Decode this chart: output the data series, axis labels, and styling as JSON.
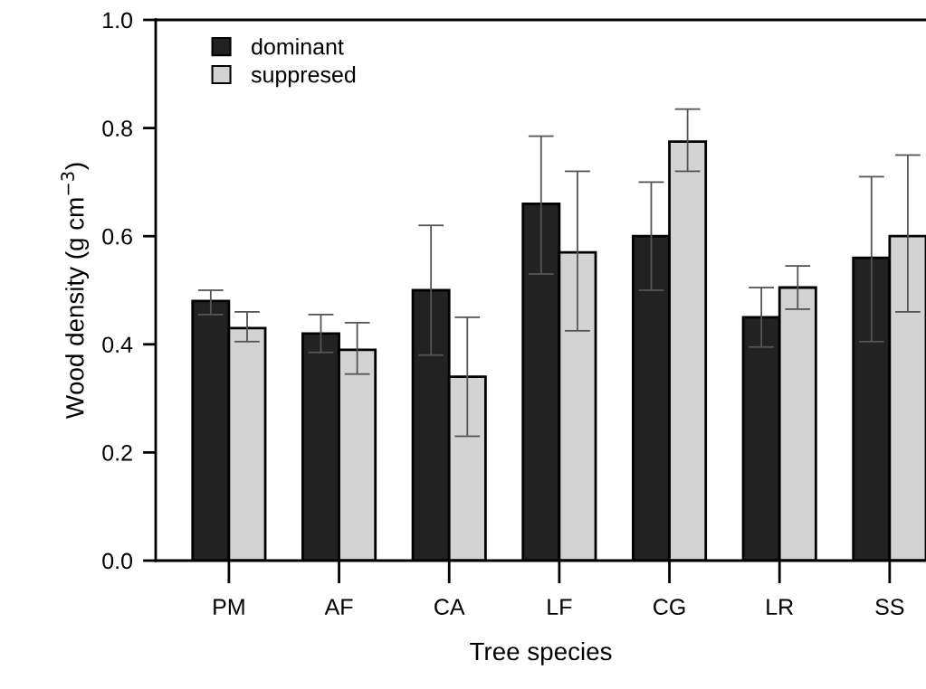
{
  "chart_data": {
    "type": "bar",
    "xlabel": "Tree species",
    "ylabel": "Wood density (g cm$^{−3}$)",
    "categories": [
      "PM",
      "AF",
      "CA",
      "LF",
      "CG",
      "LR",
      "SS"
    ],
    "series": [
      {
        "name": "dominant",
        "color": "#222222",
        "values": [
          0.48,
          0.42,
          0.5,
          0.66,
          0.6,
          0.45,
          0.56
        ],
        "errors": [
          [
            0.455,
            0.5
          ],
          [
            0.385,
            0.455
          ],
          [
            0.38,
            0.62
          ],
          [
            0.53,
            0.785
          ],
          [
            0.5,
            0.7
          ],
          [
            0.395,
            0.505
          ],
          [
            0.405,
            0.71
          ]
        ]
      },
      {
        "name": "suppresed",
        "color": "#d3d3d3",
        "values": [
          0.43,
          0.39,
          0.34,
          0.57,
          0.775,
          0.505,
          0.6
        ],
        "errors": [
          [
            0.405,
            0.46
          ],
          [
            0.345,
            0.44
          ],
          [
            0.23,
            0.45
          ],
          [
            0.425,
            0.72
          ],
          [
            0.72,
            0.835
          ],
          [
            0.465,
            0.545
          ],
          [
            0.46,
            0.75
          ]
        ]
      }
    ],
    "ylim": [
      0,
      1.0
    ],
    "yticks": [
      {
        "value": 0,
        "label": "0.0"
      },
      {
        "value": 0.2,
        "label": "0.2"
      },
      {
        "value": 0.4,
        "label": "0.4"
      },
      {
        "value": 0.6,
        "label": "0.6"
      },
      {
        "value": 0.8,
        "label": "0.8"
      },
      {
        "value": 1.0,
        "label": "1.0"
      }
    ],
    "legend": "top left",
    "grid": false
  }
}
